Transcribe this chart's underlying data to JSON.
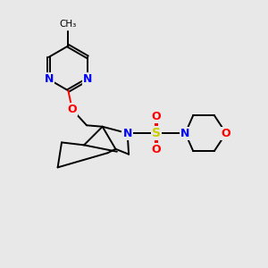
{
  "background_color": "#e8e8e8",
  "bond_color": "#000000",
  "atom_colors": {
    "N": "#0000ff",
    "O": "#ff0000",
    "S": "#cccc00",
    "C": "#000000"
  },
  "font_size_atoms": 9
}
